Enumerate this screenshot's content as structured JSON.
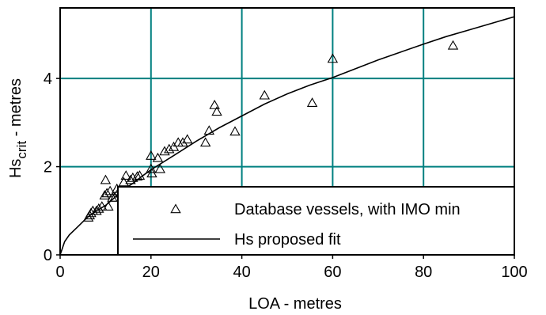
{
  "chart_data": {
    "type": "scatter",
    "xlabel": "LOA - metres",
    "ylabel": {
      "main": "Hs",
      "subscript": "crit",
      "suffix": " - metres"
    },
    "xlim": [
      0,
      100
    ],
    "ylim": [
      0,
      5.6
    ],
    "xticks": [
      0,
      20,
      40,
      60,
      80,
      100
    ],
    "yticks": [
      0,
      2,
      4
    ],
    "grid": true,
    "grid_color": "#008080",
    "legend_placement": "bottom-right",
    "series": [
      {
        "name": "Database vessels, with IMO min",
        "marker": "triangle-open",
        "points": [
          [
            6.2,
            0.85
          ],
          [
            6.5,
            0.9
          ],
          [
            6.8,
            0.95
          ],
          [
            7.2,
            1.0
          ],
          [
            8.0,
            1.0
          ],
          [
            8.5,
            1.05
          ],
          [
            9.2,
            1.1
          ],
          [
            9.8,
            1.35
          ],
          [
            10.0,
            1.7
          ],
          [
            10.3,
            1.4
          ],
          [
            10.6,
            1.1
          ],
          [
            11.0,
            1.45
          ],
          [
            11.5,
            1.3
          ],
          [
            12.0,
            1.3
          ],
          [
            12.5,
            1.5
          ],
          [
            13.0,
            1.45
          ],
          [
            14.0,
            1.65
          ],
          [
            14.5,
            1.8
          ],
          [
            15.5,
            1.7
          ],
          [
            16.0,
            1.75
          ],
          [
            17.0,
            1.78
          ],
          [
            17.5,
            1.8
          ],
          [
            20.0,
            1.95
          ],
          [
            20.2,
            1.85
          ],
          [
            20.0,
            2.25
          ],
          [
            21.5,
            2.2
          ],
          [
            22.0,
            1.95
          ],
          [
            23.0,
            2.35
          ],
          [
            24.0,
            2.4
          ],
          [
            25.0,
            2.45
          ],
          [
            26.0,
            2.55
          ],
          [
            27.0,
            2.55
          ],
          [
            28.0,
            2.62
          ],
          [
            32.0,
            2.55
          ],
          [
            32.8,
            2.82
          ],
          [
            34.0,
            3.4
          ],
          [
            34.5,
            3.25
          ],
          [
            38.5,
            2.8
          ],
          [
            45.0,
            3.62
          ],
          [
            55.5,
            3.45
          ],
          [
            60.0,
            4.45
          ],
          [
            86.5,
            4.75
          ]
        ]
      },
      {
        "name": "Hs proposed fit",
        "marker": "line",
        "points": [
          [
            0,
            0
          ],
          [
            1,
            0.3
          ],
          [
            2,
            0.45
          ],
          [
            4,
            0.65
          ],
          [
            6,
            0.85
          ],
          [
            8,
            1.0
          ],
          [
            10,
            1.12
          ],
          [
            12,
            1.3
          ],
          [
            14,
            1.48
          ],
          [
            16,
            1.62
          ],
          [
            18,
            1.78
          ],
          [
            20,
            1.93
          ],
          [
            25,
            2.25
          ],
          [
            30,
            2.58
          ],
          [
            35,
            2.88
          ],
          [
            40,
            3.15
          ],
          [
            45,
            3.42
          ],
          [
            50,
            3.65
          ],
          [
            55,
            3.85
          ],
          [
            60,
            4.02
          ],
          [
            65,
            4.22
          ],
          [
            70,
            4.42
          ],
          [
            75,
            4.6
          ],
          [
            80,
            4.78
          ],
          [
            85,
            4.95
          ],
          [
            90,
            5.1
          ],
          [
            95,
            5.25
          ],
          [
            100,
            5.4
          ]
        ]
      }
    ]
  }
}
